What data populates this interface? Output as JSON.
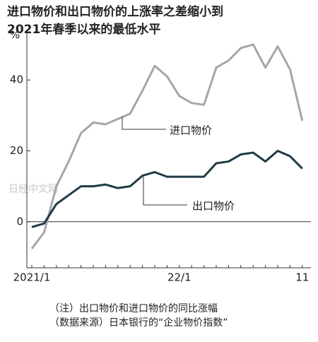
{
  "chart_data": {
    "type": "line",
    "title": [
      "进口物价和出口物价的上涨率之差缩小到",
      "2021年春季以来的最低水平"
    ],
    "y_unit": "%",
    "categories": [
      "2021/1",
      null,
      null,
      null,
      null,
      null,
      null,
      null,
      null,
      null,
      null,
      null,
      "22/1",
      null,
      null,
      null,
      null,
      null,
      null,
      null,
      null,
      null,
      "11"
    ],
    "series": [
      {
        "name": "进口物价",
        "color": "#a6a6a6",
        "values": [
          -7.6,
          -3,
          10,
          17,
          25,
          28,
          27.5,
          29,
          30.5,
          37,
          44,
          41,
          35.5,
          33.5,
          33,
          43.5,
          45.5,
          49,
          50,
          43.5,
          49.5,
          43,
          28.5
        ]
      },
      {
        "name": "出口物价",
        "color": "#1f3a44",
        "values": [
          -1.5,
          -0.5,
          5,
          7.5,
          10,
          10,
          10.5,
          9.5,
          10,
          13,
          14,
          12.7,
          12.7,
          12.7,
          12.7,
          16.5,
          17,
          19,
          19.5,
          17,
          20,
          18.5,
          15
        ]
      }
    ],
    "ylim": [
      -13,
      54
    ],
    "yticks": [
      0,
      20,
      40
    ],
    "notes": [
      "（注）出口物价和进口物价的同比涨幅",
      "（数据来源）日本银行的“企业物价指数”"
    ],
    "watermark": "日经中文网"
  }
}
